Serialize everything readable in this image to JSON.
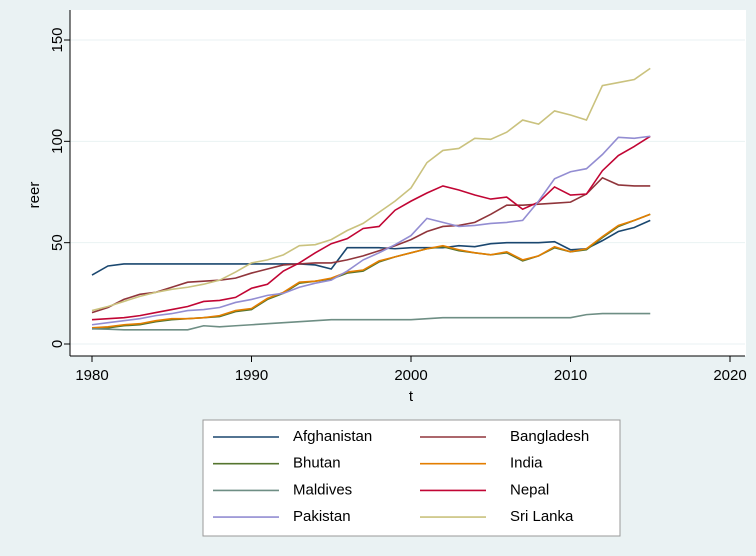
{
  "chart_data": {
    "type": "line",
    "x_label": "t",
    "y_label": "reer",
    "x": [
      1980,
      1981,
      1982,
      1983,
      1984,
      1985,
      1986,
      1987,
      1988,
      1989,
      1990,
      1991,
      1992,
      1993,
      1994,
      1995,
      1996,
      1997,
      1998,
      1999,
      2000,
      2001,
      2002,
      2003,
      2004,
      2005,
      2006,
      2007,
      2008,
      2009,
      2010,
      2011,
      2012,
      2013,
      2014,
      2015
    ],
    "xlim": [
      1980,
      2020
    ],
    "xticks": [
      1980,
      1990,
      2000,
      2010,
      2020
    ],
    "ylim": [
      0,
      150
    ],
    "yticks": [
      0,
      50,
      100,
      150
    ],
    "grid": true,
    "legend": "bottom",
    "series": [
      {
        "name": "Afghanistan",
        "color": "#1a476f",
        "values": [
          34,
          38.5,
          39.5,
          39.5,
          39.5,
          39.5,
          39.5,
          39.5,
          39.5,
          39.5,
          39.5,
          39.5,
          39.5,
          39.5,
          39,
          37,
          47.5,
          47.5,
          47.5,
          47,
          47.5,
          47.5,
          47.5,
          48.5,
          48,
          49.5,
          50,
          50,
          50,
          50.5,
          46.5,
          47,
          51,
          55.5,
          57.5,
          61
        ]
      },
      {
        "name": "Bangladesh",
        "color": "#90353b",
        "values": [
          15.5,
          18,
          22,
          24.5,
          25.5,
          28,
          30.5,
          31,
          31.5,
          32.5,
          35,
          37,
          39,
          39.5,
          40,
          40,
          41.5,
          43.5,
          46,
          48.5,
          51.5,
          55.5,
          58,
          58.5,
          60,
          64,
          68.5,
          68.5,
          69,
          69.5,
          70,
          74,
          82,
          78.5,
          78,
          78
        ]
      },
      {
        "name": "Bhutan",
        "color": "#55752f",
        "values": [
          7.5,
          8,
          9,
          9.5,
          11,
          12,
          12.5,
          13,
          13.5,
          16,
          17,
          22,
          25,
          30,
          31,
          32,
          35,
          36,
          40.5,
          43,
          45,
          47,
          48,
          46,
          45,
          44,
          45,
          41,
          43.5,
          47.5,
          45.5,
          46.5,
          52.5,
          58,
          61,
          64
        ]
      },
      {
        "name": "India",
        "color": "#e37e00",
        "values": [
          8,
          8.5,
          9.5,
          10,
          11.5,
          12.5,
          12.5,
          13,
          14,
          16.5,
          17.5,
          22.5,
          25.5,
          30.5,
          31,
          32.5,
          35.5,
          36.5,
          41,
          43,
          45,
          47,
          48.5,
          46.5,
          45,
          44,
          45.5,
          41.5,
          43.5,
          48,
          45.5,
          47,
          53,
          58.5,
          61,
          64
        ]
      },
      {
        "name": "Maldives",
        "color": "#6e8e84",
        "values": [
          7.5,
          7.3,
          7,
          7,
          7,
          7,
          7,
          9,
          8.5,
          9,
          9.5,
          10,
          10.5,
          11,
          11.5,
          12,
          12,
          12,
          12,
          12,
          12,
          12.5,
          13,
          13,
          13,
          13,
          13,
          13,
          13,
          13,
          13,
          14.5,
          15,
          15,
          15,
          15
        ]
      },
      {
        "name": "Nepal",
        "color": "#c10534",
        "values": [
          12,
          12.5,
          13,
          14,
          15.5,
          17,
          18.5,
          21,
          21.5,
          23,
          27.5,
          29.5,
          36,
          40,
          45,
          49.5,
          52,
          57,
          58,
          66,
          70.5,
          74.5,
          78,
          76,
          73.5,
          71.5,
          72.5,
          66.5,
          70,
          77.5,
          73.5,
          74,
          85.5,
          93,
          97.5,
          102.5
        ]
      },
      {
        "name": "Pakistan",
        "color": "#938dd2",
        "values": [
          9.5,
          10.5,
          11.5,
          12.5,
          14,
          15,
          16.5,
          17,
          18,
          20.5,
          22,
          24,
          25,
          28,
          30,
          31.5,
          36,
          41.5,
          45,
          49,
          53.5,
          62,
          60,
          58,
          58.5,
          59.5,
          60,
          61,
          70.5,
          81.5,
          85,
          86.5,
          93.5,
          102,
          101.5,
          102.5
        ]
      },
      {
        "name": "Sri Lanka",
        "color": "#cac27e",
        "values": [
          16.5,
          18.5,
          21,
          23.5,
          25.5,
          27,
          28,
          29.5,
          31.5,
          35.5,
          40,
          41.5,
          44,
          48.5,
          49,
          51.5,
          56,
          59.5,
          65,
          70.5,
          77,
          89.5,
          95.5,
          96.5,
          101.5,
          101,
          104.5,
          110.5,
          108.5,
          115,
          113,
          110.5,
          127.5,
          129,
          130.5,
          136
        ]
      }
    ]
  }
}
